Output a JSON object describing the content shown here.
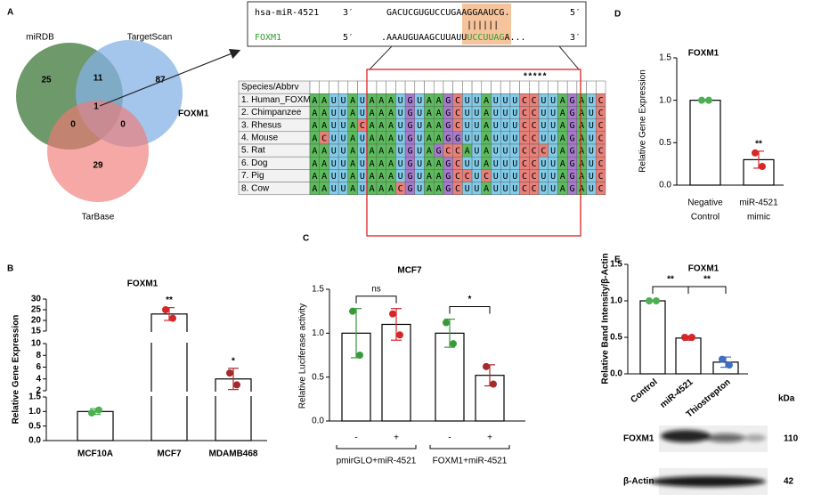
{
  "panels": {
    "labels": [
      "A",
      "B",
      "C",
      "D",
      "E"
    ],
    "venn": {
      "sets": [
        "miRDB",
        "TargetScan",
        "TarBase"
      ],
      "counts": [
        25,
        11,
        87,
        1,
        0,
        0,
        29
      ],
      "target": "FOXM1"
    },
    "duplex": {
      "mirna": {
        "name": "hsa-miR-4521",
        "left": "3′",
        "sequence": "GACUCGUGUCCUGAAGGAAUCG.",
        "right": "5′"
      },
      "pairing": "||||||",
      "target": {
        "name": "FOXM1",
        "left": "5′",
        "sequence": [
          ".AAAUGUAAGCUUAUU",
          "UCCUUAG",
          "A..."
        ],
        "right": "3′"
      }
    },
    "alignment": {
      "header": "Species/Abbrv",
      "conservation": "*****",
      "rows": [
        {
          "species": "1. Human_FOXM1",
          "sequence": "AAUUAUAAAUGUAAGCUUAUUUCCUUAGAUC"
        },
        {
          "species": "2. Chimpanzee",
          "sequence": "AAUUAUAAAUGUAAGCUUAUUUCCUUAGAUC"
        },
        {
          "species": "3. Rhesus",
          "sequence": "AAUUACAAAUGUAAGCUUAUUUCCUUAGAUC"
        },
        {
          "species": "4. Mouse",
          "sequence": "ACUUAUAAAUGUAAGGUUAUUUCCUUAGAUC"
        },
        {
          "species": "5. Rat",
          "sequence": "AAUUAUAAAUGUAGCCAUAUUUCCCUAGAUC"
        },
        {
          "species": "6. Dog",
          "sequence": "AAUUAUAAAUGUAAGCUUAUUUCCUUAGAUC"
        },
        {
          "species": "7. Pig",
          "sequence": "AAUUAUAAAUGUAAGCCUCUUUCCUUAGAUC"
        },
        {
          "species": "8. Cow",
          "sequence": "AAUUAUAAACGUAAGCUUAUUUCCUUAGAUC"
        }
      ]
    },
    "blot": {
      "unit": "kDa",
      "rows": [
        {
          "name": "FOXM1",
          "kda": 110
        },
        {
          "name": "β-Actin",
          "kda": 42
        }
      ]
    }
  },
  "chart_data": [
    {
      "type": "bar",
      "title": "FOXM1",
      "ylabel": "Relative Gene Expression",
      "categories": [
        "MCF10A",
        "MCF7",
        "MDAMB468"
      ],
      "values": [
        1.0,
        23,
        4
      ],
      "errors": [
        0.1,
        3,
        1.8
      ],
      "points": [
        [
          0.95,
          1.05
        ],
        [
          25,
          21
        ],
        [
          5.0,
          3.0
        ]
      ],
      "point_colors": [
        "#4caf50",
        "#d62728",
        "#a52a2a"
      ],
      "y_segments": [
        {
          "ylim": [
            0,
            1.5
          ],
          "yticks": [
            {
              "value": 0,
              "label": "0.0"
            },
            {
              "value": 0.5,
              "label": "0.5"
            },
            {
              "value": 1,
              "label": "1.0"
            },
            {
              "value": 1.5,
              "label": "1.5"
            }
          ]
        },
        {
          "ylim": [
            2,
            10
          ],
          "yticks": [
            2,
            4,
            6,
            8,
            10
          ]
        },
        {
          "ylim": [
            15,
            30
          ],
          "yticks": [
            15,
            20,
            25,
            30
          ]
        }
      ],
      "annotations": [
        {
          "text": "**",
          "categories": [
            1
          ]
        },
        {
          "text": "*",
          "categories": [
            2
          ]
        }
      ]
    },
    {
      "type": "bar",
      "title": "MCF7",
      "ylabel": "Relative Luciferase activity",
      "categories": [
        "-",
        "+",
        "-",
        "+"
      ],
      "groups": [
        "pmirGLO+miR-4521",
        "FOXM1+miR-4521"
      ],
      "values": [
        1.0,
        1.1,
        1.0,
        0.52
      ],
      "errors": [
        0.28,
        0.18,
        0.16,
        0.12
      ],
      "points": [
        [
          1.25,
          0.75
        ],
        [
          1.22,
          0.98
        ],
        [
          1.12,
          0.88
        ],
        [
          0.62,
          0.42
        ]
      ],
      "point_colors": [
        "#3a9a3a",
        "#d62728",
        "#3a9a3a",
        "#a52a2a"
      ],
      "ylim": [
        0,
        1.5
      ],
      "yticks": [
        {
          "value": 0,
          "label": "0.0"
        },
        {
          "value": 0.5,
          "label": "0.5"
        },
        {
          "value": 1,
          "label": "1.0"
        },
        {
          "value": 1.5,
          "label": "1.5"
        }
      ],
      "annotations": [
        {
          "text": "ns",
          "categories": [
            0,
            1
          ]
        },
        {
          "text": "*",
          "categories": [
            2,
            3
          ]
        }
      ]
    },
    {
      "type": "bar",
      "title": "FOXM1",
      "ylabel": "Relative Gene Expression",
      "categories": [
        [
          "Negative",
          "Control"
        ],
        [
          "miR-4521",
          "mimic"
        ]
      ],
      "values": [
        1.0,
        0.3
      ],
      "errors": [
        0.01,
        0.1
      ],
      "points": [
        [
          1.0,
          1.0
        ],
        [
          0.38,
          0.22
        ]
      ],
      "point_colors": [
        "#4caf50",
        "#d62728"
      ],
      "ylim": [
        0,
        1.5
      ],
      "yticks": [
        {
          "value": 0,
          "label": "0.0"
        },
        {
          "value": 0.5,
          "label": "0.5"
        },
        {
          "value": 1,
          "label": "1.0"
        },
        {
          "value": 1.5,
          "label": "1.5"
        }
      ],
      "annotations": [
        {
          "text": "**",
          "categories": [
            1
          ]
        }
      ]
    },
    {
      "type": "bar",
      "title": "FOXM1",
      "ylabel": "Relative Band Intensity/β-Actin",
      "categories": [
        "Control",
        "miR-4521",
        "Thiostrepton"
      ],
      "values": [
        1.0,
        0.49,
        0.16
      ],
      "errors": [
        0.01,
        0.03,
        0.07
      ],
      "points": [
        [
          1.0,
          1.0
        ],
        [
          0.5,
          0.5
        ],
        [
          0.2,
          0.12
        ]
      ],
      "point_colors": [
        "#4caf50",
        "#d62728",
        "#3f6fc4"
      ],
      "ylim": [
        0,
        1.5
      ],
      "yticks": [
        {
          "value": 0,
          "label": "0.0"
        },
        {
          "value": 0.5,
          "label": "0.5"
        },
        {
          "value": 1,
          "label": "1.0"
        },
        {
          "value": 1.5,
          "label": "1.5"
        }
      ],
      "annotations": [
        {
          "text": "**",
          "categories": [
            0,
            1
          ]
        },
        {
          "text": "**",
          "categories": [
            1,
            2
          ]
        }
      ]
    }
  ]
}
